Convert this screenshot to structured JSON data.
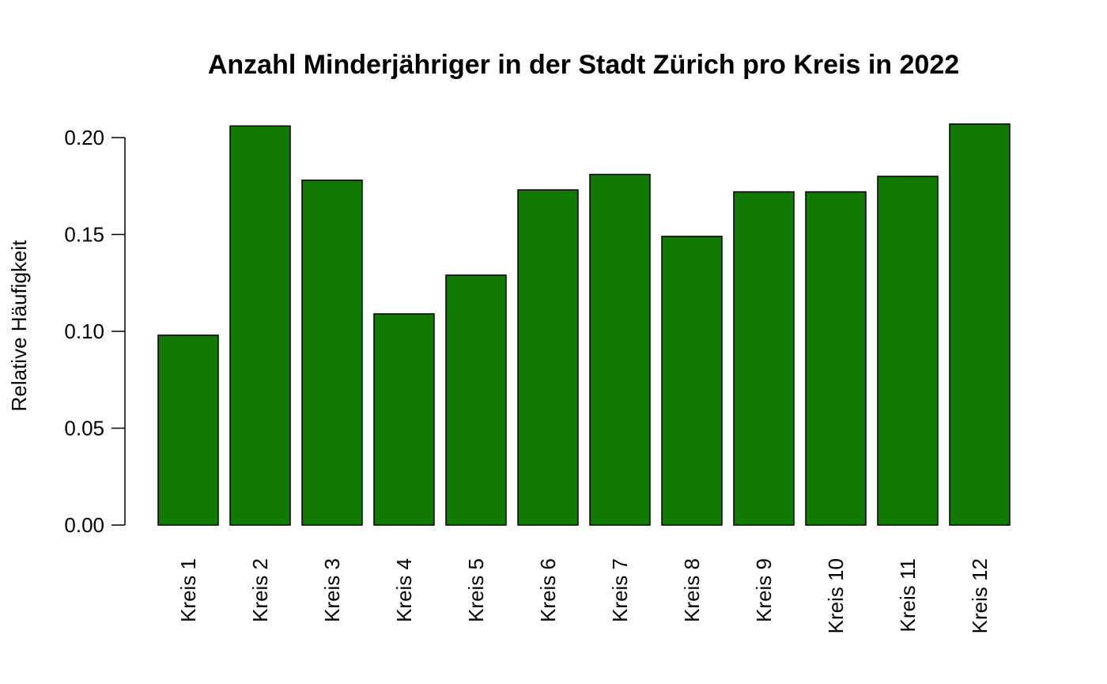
{
  "chart_data": {
    "type": "bar",
    "title": "Anzahl Minderjähriger in der Stadt Zürich pro Kreis in 2022",
    "xlabel": "",
    "ylabel": "Relative Häufigkeit",
    "categories": [
      "Kreis 1",
      "Kreis 2",
      "Kreis 3",
      "Kreis 4",
      "Kreis 5",
      "Kreis 6",
      "Kreis 7",
      "Kreis 8",
      "Kreis 9",
      "Kreis 10",
      "Kreis 11",
      "Kreis 12"
    ],
    "values": [
      0.098,
      0.206,
      0.178,
      0.109,
      0.129,
      0.173,
      0.181,
      0.149,
      0.172,
      0.172,
      0.18,
      0.207
    ],
    "yticks": [
      "0.00",
      "0.05",
      "0.10",
      "0.15",
      "0.20"
    ],
    "ylim": [
      0,
      0.2
    ],
    "bar_color": "#107a03",
    "grid": false,
    "legend": "none"
  }
}
